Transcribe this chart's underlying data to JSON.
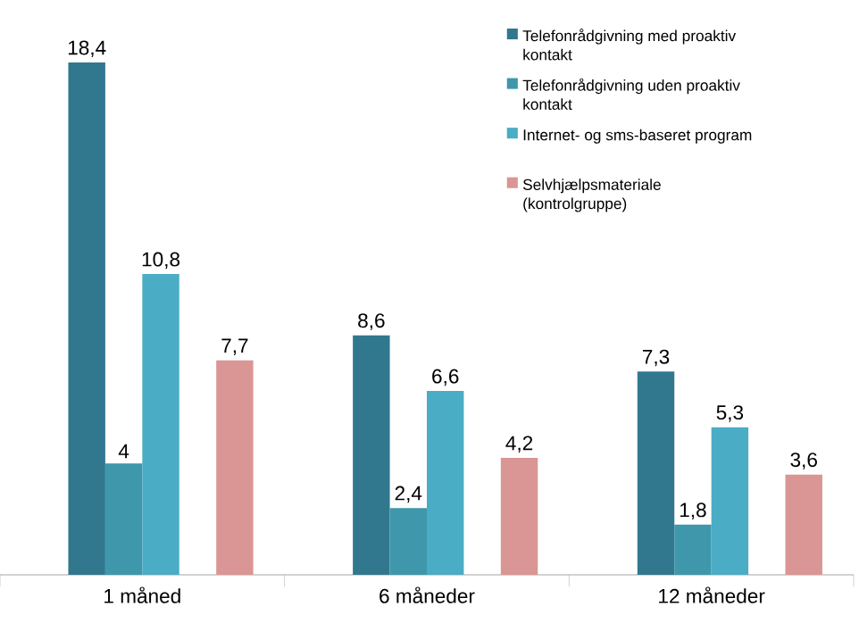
{
  "chart_data": {
    "type": "bar",
    "categories": [
      "1 måned",
      "6 måneder",
      "12 måneder"
    ],
    "series": [
      {
        "name": "Telefonrådgivning med proaktiv kontakt",
        "color": "#31788f",
        "values": [
          18.4,
          8.6,
          7.3
        ],
        "value_labels": [
          "18,4",
          "8,6",
          "7,3"
        ]
      },
      {
        "name": "Telefonrådgivning uden proaktiv kontakt",
        "color": "#3f97ab",
        "values": [
          4,
          2.4,
          1.8
        ],
        "value_labels": [
          "4",
          "2,4",
          "1,8"
        ]
      },
      {
        "name": "Internet- og sms-baseret program",
        "color": "#4bacc6",
        "values": [
          10.8,
          6.6,
          5.3
        ],
        "value_labels": [
          "10,8",
          "6,6",
          "5,3"
        ]
      },
      {
        "name": "Selvhjælpsmateriale (kontrolgruppe)",
        "color": "#d99694",
        "values": [
          7.7,
          4.2,
          3.6
        ],
        "value_labels": [
          "7,7",
          "4,2",
          "3,6"
        ]
      }
    ],
    "legend": "top right"
  }
}
